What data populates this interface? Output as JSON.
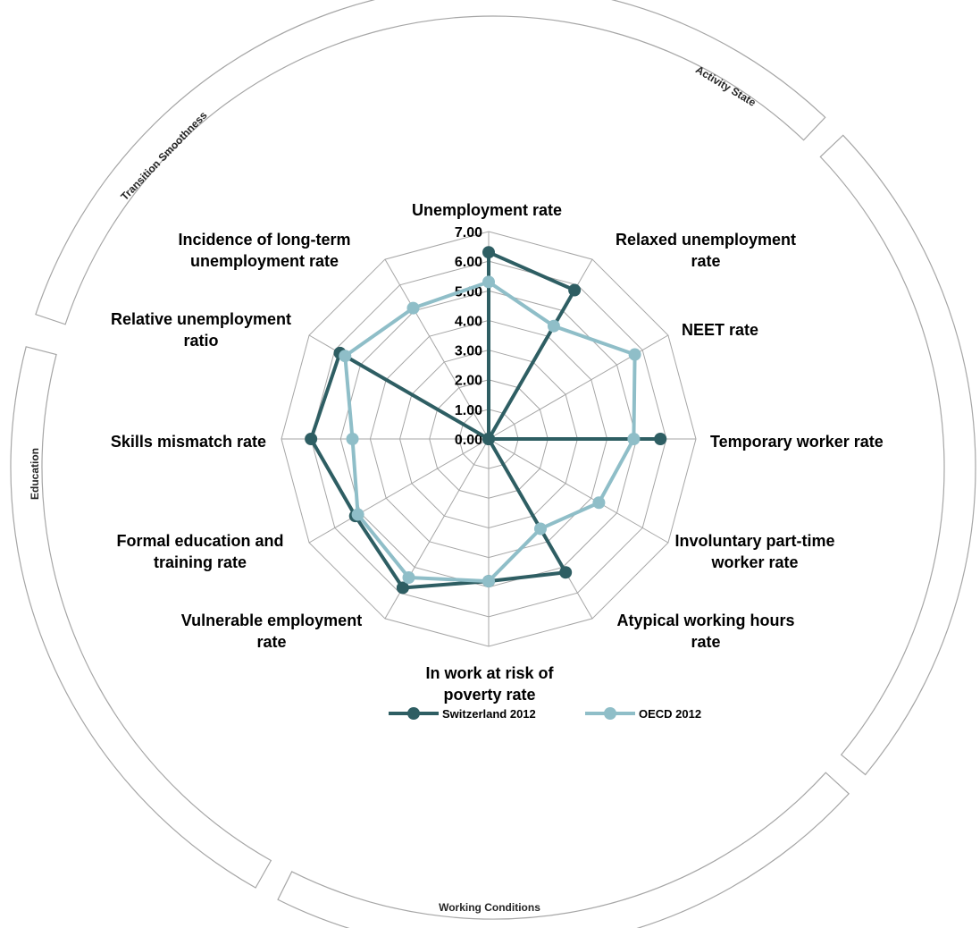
{
  "chart_data": {
    "type": "radar",
    "title": "",
    "categories": [
      "Unemployment rate",
      "Relaxed unemployment rate",
      "NEET rate",
      "Temporary worker rate",
      "Involuntary part-time worker rate",
      "Atypical working hours rate",
      "In work at risk of poverty rate",
      "Vulnerable employment rate",
      "Formal education and training rate",
      "Skills mismatch rate",
      "Relative unemployment ratio",
      "Incidence of long-term unemployment rate"
    ],
    "category_label_lines": [
      [
        "Unemployment rate"
      ],
      [
        "Relaxed unemployment",
        "rate"
      ],
      [
        "NEET rate"
      ],
      [
        "Temporary worker rate"
      ],
      [
        "Involuntary part-time",
        "worker rate"
      ],
      [
        "Atypical working hours",
        "rate"
      ],
      [
        "In work at risk of",
        "poverty rate"
      ],
      [
        "Vulnerable employment",
        "rate"
      ],
      [
        "Formal education and",
        "training rate"
      ],
      [
        "Skills mismatch rate"
      ],
      [
        "Relative unemployment",
        "ratio"
      ],
      [
        "Incidence of long-term",
        "unemployment rate"
      ]
    ],
    "rlim": [
      0,
      7
    ],
    "ticks": [
      "0.00",
      "1.00",
      "2.00",
      "3.00",
      "4.00",
      "5.00",
      "6.00",
      "7.00"
    ],
    "series": [
      {
        "name": "Switzerland 2012",
        "color": "#2e5e63",
        "values": [
          6.3,
          5.8,
          0.0,
          5.8,
          0.0,
          5.2,
          4.8,
          5.8,
          5.2,
          6.0,
          5.8,
          0.0
        ]
      },
      {
        "name": "OECD 2012",
        "color": "#8fbec8",
        "values": [
          5.3,
          4.4,
          5.7,
          4.9,
          4.3,
          3.5,
          4.8,
          5.4,
          5.1,
          4.6,
          5.6,
          5.1
        ]
      }
    ],
    "groups": [
      "Activity State",
      "Working Conditions",
      "Education",
      "Transition Smoothness"
    ],
    "grid": true,
    "legend": "bottom"
  }
}
